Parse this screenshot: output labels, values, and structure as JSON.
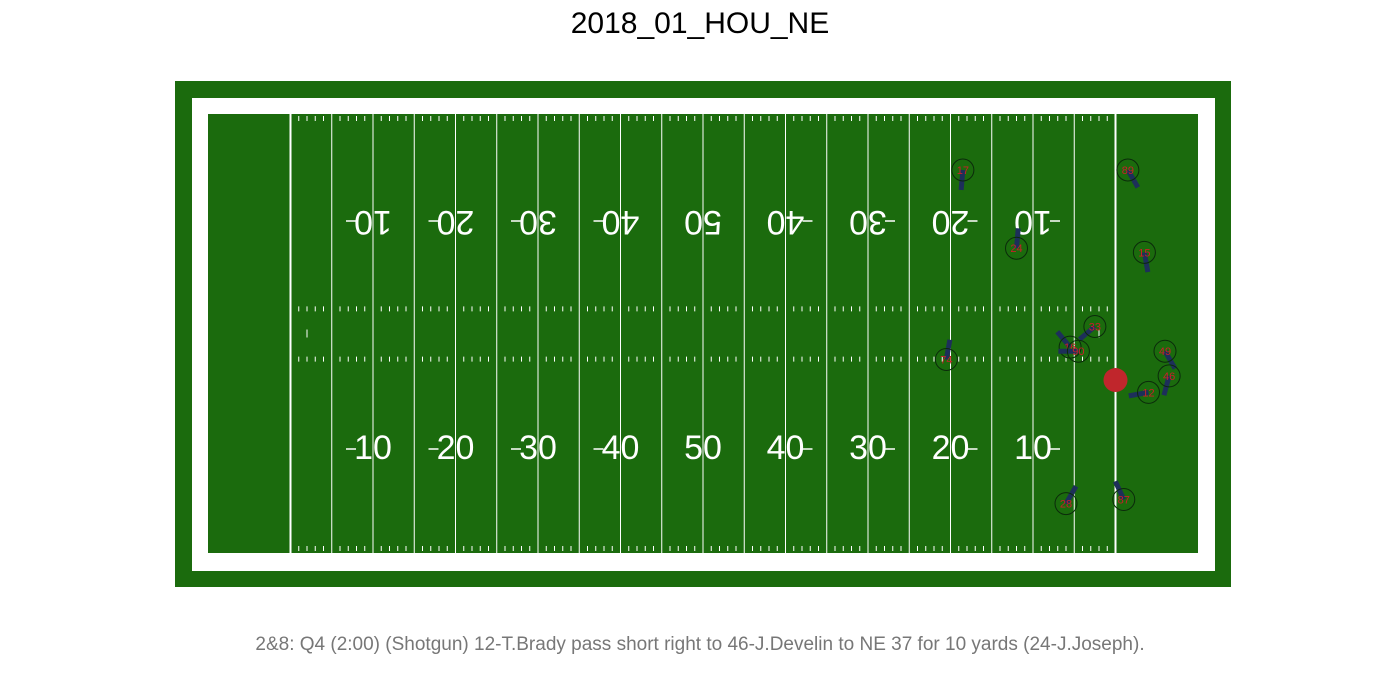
{
  "title": "2018_01_HOU_NE",
  "caption": "2&8: Q4 (2:00) (Shotgun) 12-T.Brady pass short right to 46-J.Develin to NE 37 for 10 yards (24-J.Joseph).",
  "colors": {
    "turf": "#1b6b0d",
    "lines": "#ffffff",
    "player_fill": "#1b6b0d",
    "player_stroke": "#0b2a0b",
    "direction": "#1d2f5a",
    "jersey_text": "#c8202a",
    "ball": "#c0262c",
    "title_text": "#000000",
    "caption_text": "#777777"
  },
  "field": {
    "yard_numbers_bottom": [
      "10",
      "20",
      "30",
      "40",
      "50",
      "40",
      "30",
      "20",
      "10"
    ],
    "yard_numbers_top": [
      "10",
      "20",
      "30",
      "40",
      "50",
      "40",
      "30",
      "20",
      "10"
    ]
  },
  "ball": {
    "yardline": 100,
    "y": 21
  },
  "players": [
    {
      "jersey": "17",
      "yardline": 81.5,
      "y": 46.5,
      "dir_deg": 265
    },
    {
      "jersey": "89",
      "yardline": 101.5,
      "y": 46.5,
      "dir_deg": 300
    },
    {
      "jersey": "24",
      "yardline": 88,
      "y": 37,
      "dir_deg": 85
    },
    {
      "jersey": "15",
      "yardline": 103.5,
      "y": 36.5,
      "dir_deg": 280
    },
    {
      "jersey": "33",
      "yardline": 97.5,
      "y": 27.5,
      "dir_deg": 220
    },
    {
      "jersey": "16",
      "yardline": 94.5,
      "y": 25,
      "dir_deg": 130
    },
    {
      "jersey": "90",
      "yardline": 95.5,
      "y": 24.5,
      "dir_deg": 180
    },
    {
      "jersey": "74",
      "yardline": 79.5,
      "y": 23.5,
      "dir_deg": 80
    },
    {
      "jersey": "49",
      "yardline": 106,
      "y": 24.5,
      "dir_deg": 300
    },
    {
      "jersey": "46",
      "yardline": 106.5,
      "y": 21.5,
      "dir_deg": 255
    },
    {
      "jersey": "12",
      "yardline": 104,
      "y": 19.5,
      "dir_deg": 190
    },
    {
      "jersey": "28",
      "yardline": 94,
      "y": 6,
      "dir_deg": 60
    },
    {
      "jersey": "87",
      "yardline": 101,
      "y": 6.5,
      "dir_deg": 115
    }
  ]
}
